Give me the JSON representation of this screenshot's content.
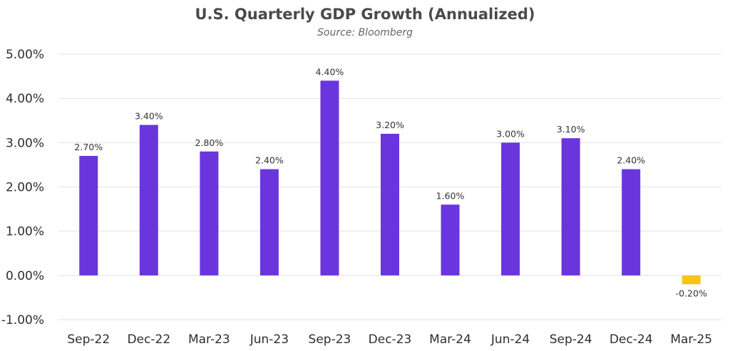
{
  "chart_data": {
    "type": "bar",
    "title": "U.S. Quarterly GDP Growth (Annualized)",
    "subtitle": "Source: Bloomberg",
    "categories": [
      "Sep-22",
      "Dec-22",
      "Mar-23",
      "Jun-23",
      "Sep-23",
      "Dec-23",
      "Mar-24",
      "Jun-24",
      "Sep-24",
      "Dec-24",
      "Mar-25"
    ],
    "values": [
      2.7,
      3.4,
      2.8,
      2.4,
      4.4,
      3.2,
      1.6,
      3.0,
      3.1,
      2.4,
      -0.2
    ],
    "data_labels": [
      "2.70%",
      "3.40%",
      "2.80%",
      "2.40%",
      "4.40%",
      "3.20%",
      "1.60%",
      "3.00%",
      "3.10%",
      "2.40%",
      "-0.20%"
    ],
    "ylim": [
      -1,
      5
    ],
    "y_ticks": [
      5,
      4,
      3,
      2,
      1,
      0,
      -1
    ],
    "y_tick_labels": [
      "5.00%",
      "4.00%",
      "3.00%",
      "2.00%",
      "1.00%",
      "0.00%",
      "-1.00%"
    ],
    "grid": true,
    "colors": {
      "positive": "#6a35dd",
      "negative": "#f5c518",
      "grid": "#e2e2e2"
    }
  }
}
